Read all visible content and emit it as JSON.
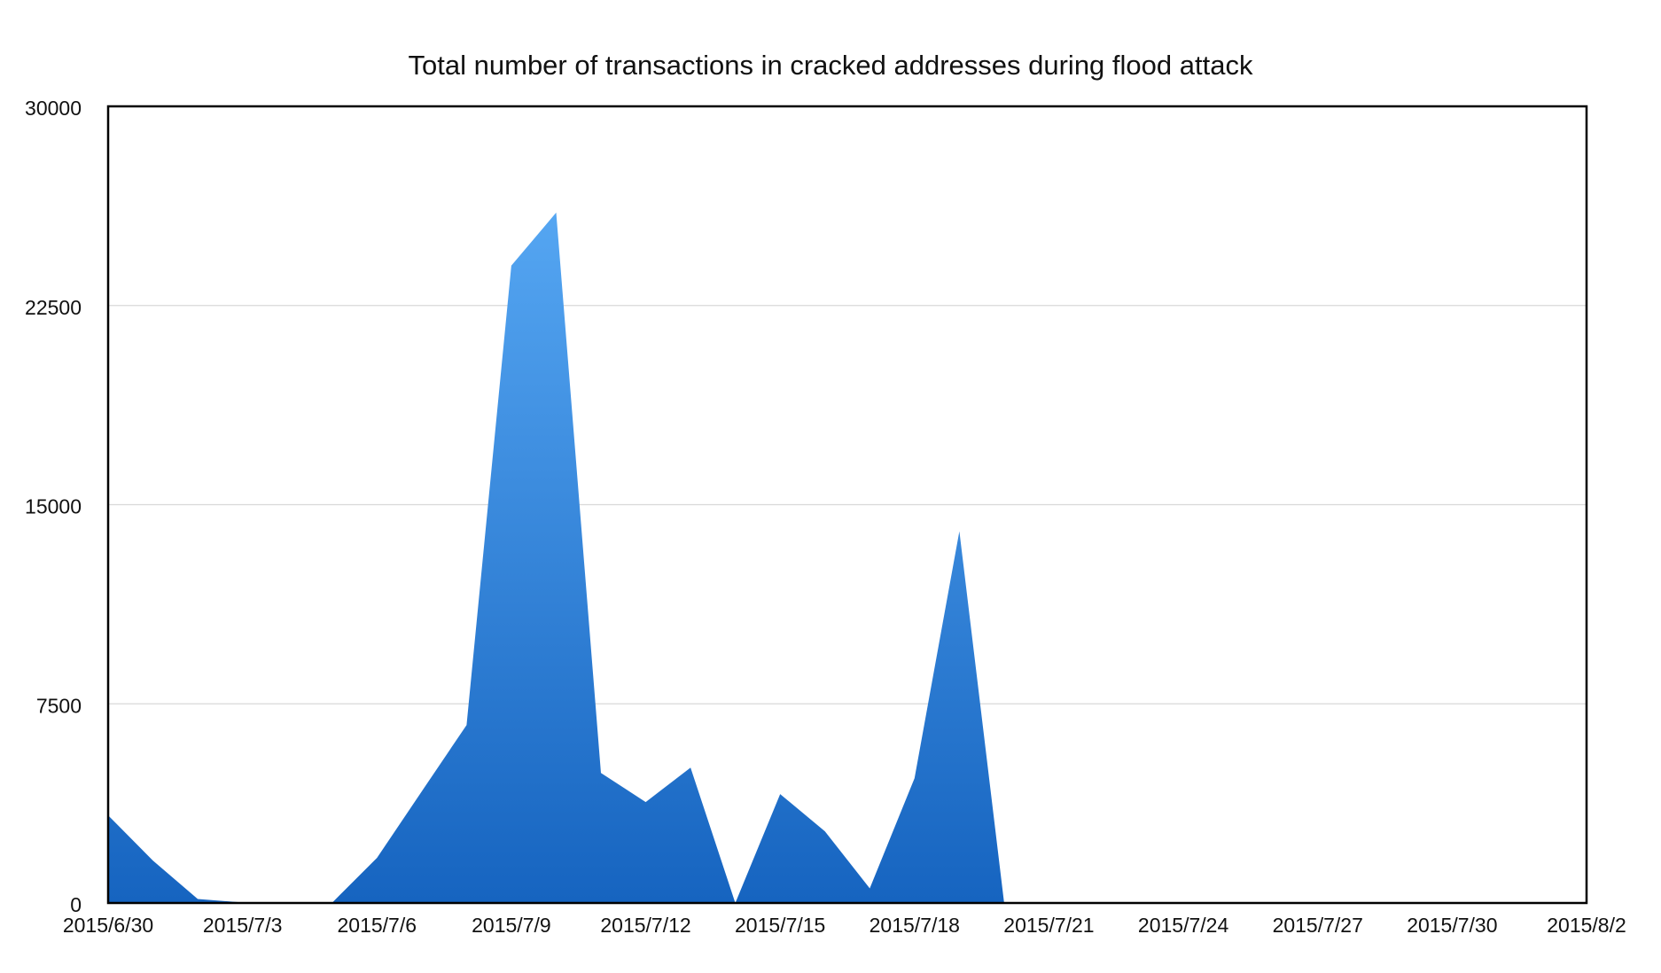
{
  "chart_data": {
    "type": "area",
    "title": "Total number of transactions in cracked addresses during flood attack",
    "xlabel": "",
    "ylabel": "",
    "xlim": [
      "2015/6/30",
      "2015/8/2"
    ],
    "ylim": [
      0,
      30000
    ],
    "y_ticks": [
      0,
      7500,
      15000,
      22500,
      30000
    ],
    "y_tick_labels": [
      "0",
      "7500",
      "15000",
      "22500",
      "30000"
    ],
    "x_tick_labels": [
      "2015/6/30",
      "2015/7/3",
      "2015/7/6",
      "2015/7/9",
      "2015/7/12",
      "2015/7/15",
      "2015/7/18",
      "2015/7/21",
      "2015/7/24",
      "2015/7/27",
      "2015/7/30",
      "2015/8/2"
    ],
    "grid": true,
    "legend": "none",
    "colors": {
      "area_top": "#55a6f2",
      "area_bottom": "#1664c0",
      "grid": "#d9d9d9",
      "axis": "#000000"
    },
    "x": [
      "2015/6/30",
      "2015/7/1",
      "2015/7/2",
      "2015/7/3",
      "2015/7/4",
      "2015/7/5",
      "2015/7/6",
      "2015/7/7",
      "2015/7/8",
      "2015/7/9",
      "2015/7/10",
      "2015/7/11",
      "2015/7/12",
      "2015/7/13",
      "2015/7/14",
      "2015/7/15",
      "2015/7/16",
      "2015/7/17",
      "2015/7/18",
      "2015/7/19",
      "2015/7/20",
      "2015/7/21",
      "2015/7/22",
      "2015/7/23",
      "2015/7/24",
      "2015/7/25",
      "2015/7/26",
      "2015/7/27",
      "2015/7/28",
      "2015/7/29",
      "2015/7/30",
      "2015/7/31",
      "2015/8/1",
      "2015/8/2"
    ],
    "series": [
      {
        "values": [
          3300,
          1600,
          150,
          20,
          10,
          10,
          1700,
          4200,
          6700,
          24000,
          26000,
          4900,
          3800,
          5100,
          0,
          4100,
          2700,
          550,
          4700,
          14000,
          0,
          0,
          0,
          0,
          0,
          0,
          0,
          0,
          0,
          0,
          0,
          0,
          0,
          0
        ]
      }
    ]
  }
}
